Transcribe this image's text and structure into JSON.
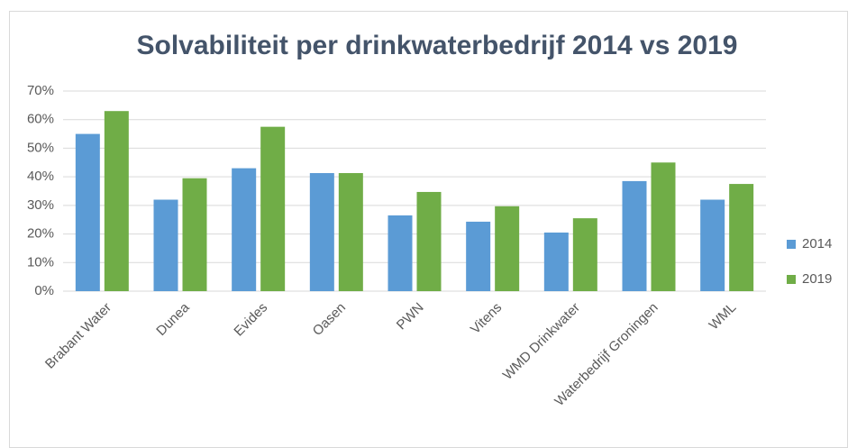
{
  "chart_data": {
    "type": "bar",
    "title": "Solvabiliteit per drinkwaterbedrijf 2014 vs 2019",
    "categories": [
      "Brabant Water",
      "Dunea",
      "Evides",
      "Oasen",
      "PWN",
      "Vitens",
      "WMD Drinkwater",
      "Waterbedrijf Groningen",
      "WML"
    ],
    "series": [
      {
        "name": "2014",
        "color": "#5b9bd5",
        "values": [
          55,
          32,
          43,
          41.3,
          26.5,
          24.3,
          20.5,
          38.5,
          32
        ]
      },
      {
        "name": "2019",
        "color": "#70ad47",
        "values": [
          63,
          39.5,
          57.5,
          41.3,
          34.7,
          29.7,
          25.5,
          45,
          37.5
        ]
      }
    ],
    "ylim": [
      0,
      70
    ],
    "yticks": [
      {
        "value": 0,
        "label": "0%"
      },
      {
        "value": 10,
        "label": "10%"
      },
      {
        "value": 20,
        "label": "20%"
      },
      {
        "value": 30,
        "label": "30%"
      },
      {
        "value": 40,
        "label": "40%"
      },
      {
        "value": 50,
        "label": "50%"
      },
      {
        "value": 60,
        "label": "60%"
      },
      {
        "value": 70,
        "label": "70%"
      }
    ],
    "grid": true,
    "legend": "right"
  }
}
